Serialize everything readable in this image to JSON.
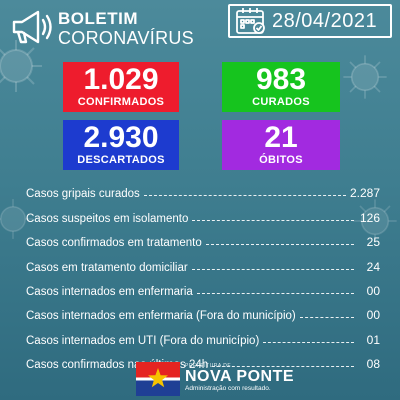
{
  "header": {
    "title_line1": "BOLETIM",
    "title_line2": "CORONAVÍRUS",
    "date": "28/04/2021",
    "icons": [
      "megaphone-icon",
      "calendar-icon"
    ]
  },
  "stats": {
    "confirmados": {
      "value": "1.029",
      "label": "CONFIRMADOS",
      "color": "#ee1c2d"
    },
    "curados": {
      "value": "983",
      "label": "CURADOS",
      "color": "#16c41e"
    },
    "descartados": {
      "value": "2.930",
      "label": "DESCARTADOS",
      "color": "#1d3bcf"
    },
    "obitos": {
      "value": "21",
      "label": "ÓBITOS",
      "color": "#a22ae0"
    }
  },
  "list": [
    {
      "label": "Casos gripais curados",
      "value": "2.287"
    },
    {
      "label": "Casos suspeitos em isolamento",
      "value": "126"
    },
    {
      "label": "Casos confirmados em tratamento",
      "value": "25"
    },
    {
      "label": "Casos em tratamento domiciliar",
      "value": "24"
    },
    {
      "label": "Casos internados em enfermaria",
      "value": "00"
    },
    {
      "label": "Casos internados em enfermaria (Fora do município)",
      "value": "00"
    },
    {
      "label": "Casos internados em UTI (Fora do município)",
      "value": "01"
    },
    {
      "label": "Casos confirmados nas últimas 24h",
      "value": "08"
    }
  ],
  "footer": {
    "prefeitura": "PREFEITURA DE",
    "city": "NOVA PONTE",
    "slogan": "Administração com resultado.",
    "flag_colors": [
      "#e52421",
      "#1f3f95",
      "#f6c300"
    ]
  },
  "background_color": "#3f7e90"
}
